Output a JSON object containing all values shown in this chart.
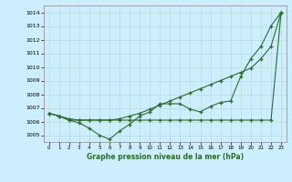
{
  "background_color": "#cceeff",
  "grid_color": "#b8ddd8",
  "line_color": "#2d6a2d",
  "title": "Graphe pression niveau de la mer (hPa)",
  "xlim": [
    -0.5,
    23.5
  ],
  "ylim": [
    1004.5,
    1014.5
  ],
  "yticks": [
    1005,
    1006,
    1007,
    1008,
    1009,
    1010,
    1011,
    1012,
    1013,
    1014
  ],
  "xticks": [
    0,
    1,
    2,
    3,
    4,
    5,
    6,
    7,
    8,
    9,
    10,
    11,
    12,
    13,
    14,
    15,
    16,
    17,
    18,
    19,
    20,
    21,
    22,
    23
  ],
  "series": [
    [
      1006.6,
      1006.4,
      1006.1,
      1005.9,
      1005.5,
      1005.0,
      1004.7,
      1005.3,
      1005.8,
      1006.4,
      1006.7,
      1007.3,
      1007.3,
      1007.3,
      1006.9,
      1006.7,
      1007.1,
      1007.4,
      1007.5,
      1009.3,
      1010.6,
      1011.5,
      1013.0,
      1014.0
    ],
    [
      1006.6,
      1006.4,
      1006.2,
      1006.1,
      1006.1,
      1006.1,
      1006.1,
      1006.2,
      1006.4,
      1006.6,
      1006.9,
      1007.2,
      1007.5,
      1007.8,
      1008.1,
      1008.4,
      1008.7,
      1009.0,
      1009.3,
      1009.6,
      1009.9,
      1010.6,
      1011.5,
      1014.0
    ],
    [
      1006.6,
      1006.4,
      1006.1,
      1006.1,
      1006.1,
      1006.1,
      1006.1,
      1006.1,
      1006.1,
      1006.1,
      1006.1,
      1006.1,
      1006.1,
      1006.1,
      1006.1,
      1006.1,
      1006.1,
      1006.1,
      1006.1,
      1006.1,
      1006.1,
      1006.1,
      1006.1,
      1014.0
    ]
  ]
}
